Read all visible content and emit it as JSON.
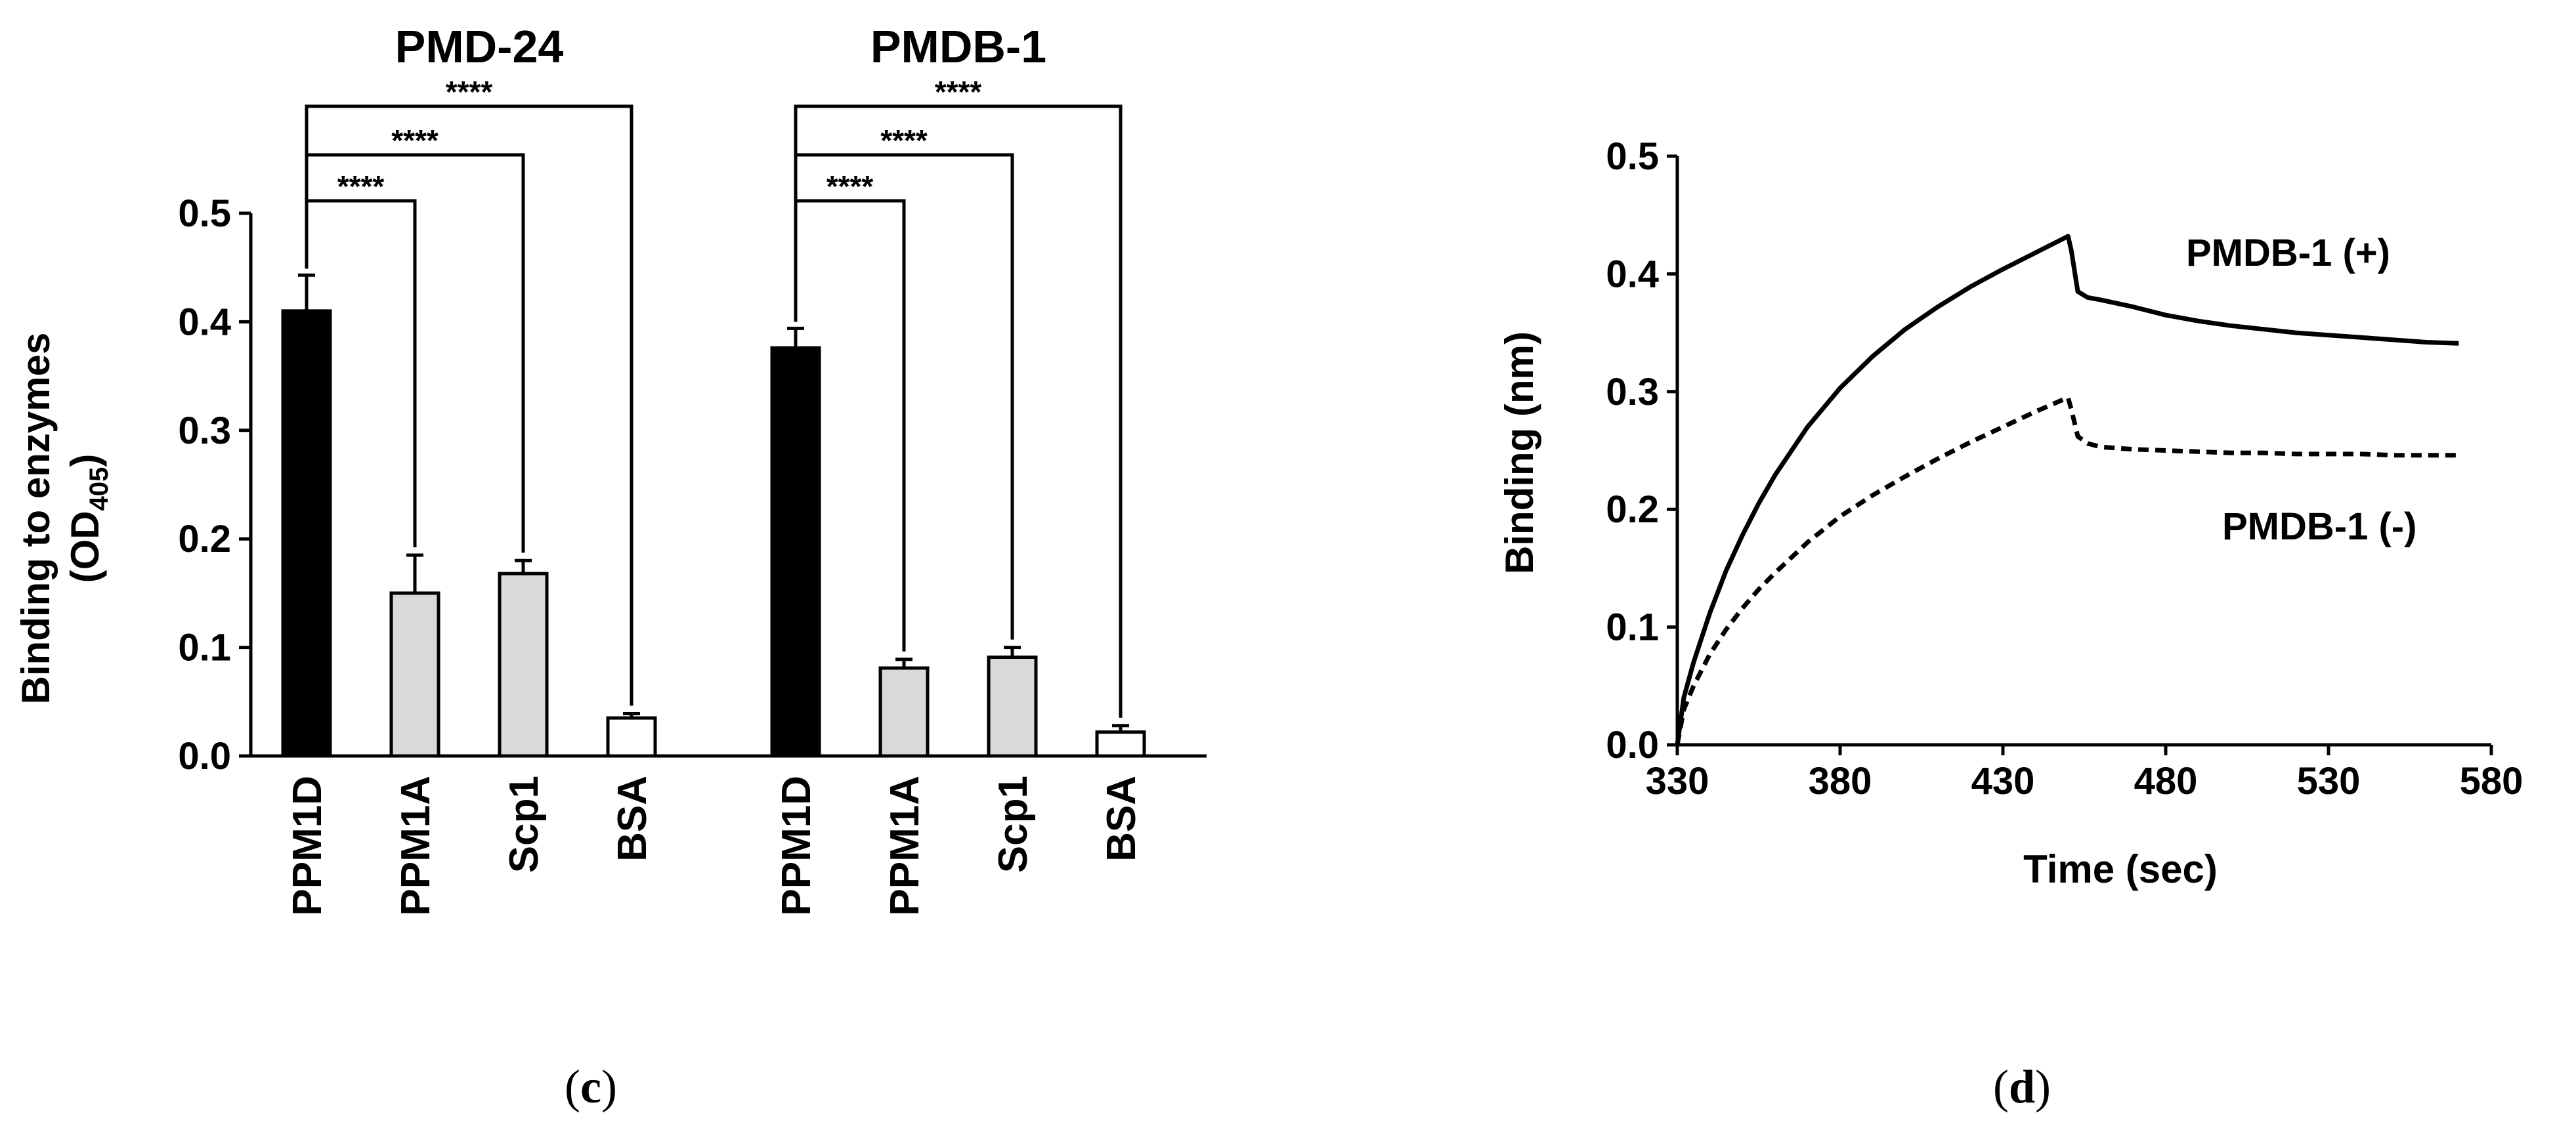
{
  "chart_data": [
    {
      "type": "bar",
      "ylabel_line1": "Binding to enzymes",
      "ylabel_line2_prefix": "(OD",
      "ylabel_line2_sub": "405",
      "ylabel_line2_suffix": ")",
      "ylim": [
        0,
        0.5
      ],
      "yticks": [
        "0.0",
        "0.1",
        "0.2",
        "0.3",
        "0.4",
        "0.5"
      ],
      "groups": [
        {
          "title": "PMD-24",
          "categories": [
            "PPM1D",
            "PPM1A",
            "Scp1",
            "BSA"
          ],
          "values": [
            0.41,
            0.15,
            0.168,
            0.035
          ],
          "errors": [
            0.033,
            0.035,
            0.012,
            0.004
          ],
          "significance": [
            "****",
            "****",
            "****"
          ]
        },
        {
          "title": "PMDB-1",
          "categories": [
            "PPM1D",
            "PPM1A",
            "Scp1",
            "BSA"
          ],
          "values": [
            0.376,
            0.081,
            0.091,
            0.022
          ],
          "errors": [
            0.018,
            0.008,
            0.009,
            0.006
          ],
          "significance": [
            "****",
            "****",
            "****"
          ]
        }
      ],
      "bar_colors": [
        "#000000",
        "#d9d9d9",
        "#d9d9d9",
        "#ffffff"
      ],
      "caption": "c"
    },
    {
      "type": "line",
      "xlabel": "Time (sec)",
      "ylabel": "Binding (nm)",
      "xlim": [
        330,
        580
      ],
      "ylim": [
        0,
        0.5
      ],
      "xticks": [
        "330",
        "380",
        "430",
        "480",
        "530",
        "580"
      ],
      "yticks": [
        "0.0",
        "0.1",
        "0.2",
        "0.3",
        "0.4",
        "0.5"
      ],
      "series": [
        {
          "name": "PMDB-1 (+)",
          "style": "solid",
          "x": [
            330,
            332,
            335,
            340,
            345,
            350,
            355,
            360,
            370,
            380,
            390,
            400,
            410,
            420,
            430,
            440,
            450,
            451,
            453,
            456,
            460,
            470,
            480,
            490,
            500,
            510,
            520,
            530,
            540,
            550,
            560,
            570
          ],
          "y": [
            0.0,
            0.04,
            0.07,
            0.112,
            0.148,
            0.178,
            0.205,
            0.229,
            0.27,
            0.303,
            0.33,
            0.353,
            0.372,
            0.389,
            0.404,
            0.418,
            0.432,
            0.42,
            0.385,
            0.38,
            0.378,
            0.372,
            0.365,
            0.36,
            0.356,
            0.353,
            0.35,
            0.348,
            0.346,
            0.344,
            0.342,
            0.341
          ]
        },
        {
          "name": "PMDB-1 (-)",
          "style": "dashed",
          "x": [
            330,
            332,
            335,
            340,
            345,
            350,
            355,
            360,
            370,
            380,
            390,
            400,
            410,
            420,
            430,
            440,
            450,
            451,
            453,
            456,
            460,
            470,
            480,
            490,
            500,
            510,
            520,
            530,
            540,
            550,
            560,
            570
          ],
          "y": [
            0.0,
            0.03,
            0.05,
            0.077,
            0.098,
            0.116,
            0.132,
            0.146,
            0.172,
            0.194,
            0.212,
            0.228,
            0.243,
            0.257,
            0.27,
            0.283,
            0.295,
            0.285,
            0.262,
            0.256,
            0.253,
            0.251,
            0.25,
            0.249,
            0.248,
            0.248,
            0.247,
            0.247,
            0.247,
            0.246,
            0.246,
            0.246
          ]
        }
      ],
      "caption": "d"
    }
  ]
}
